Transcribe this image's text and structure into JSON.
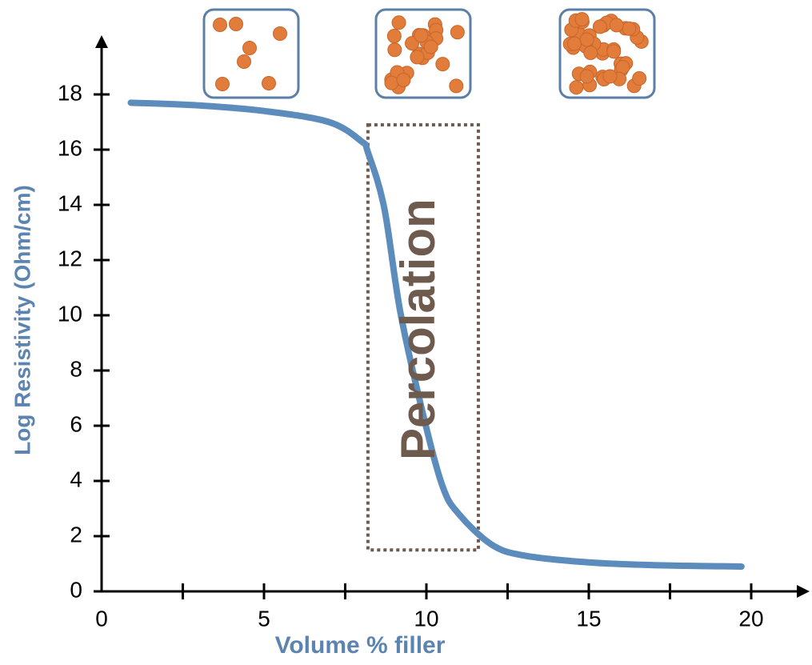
{
  "chart_data": {
    "type": "line",
    "x_label": "Volume % filler",
    "y_label": "Log Resistivity (Ohm/cm)",
    "xlim": [
      0,
      21.7
    ],
    "ylim": [
      0,
      20
    ],
    "xticks": [
      0,
      5,
      10,
      15,
      20
    ],
    "xminorticks": [
      2.5,
      7.5,
      12.5,
      17.5
    ],
    "yticks": [
      0,
      2,
      4,
      6,
      8,
      10,
      12,
      14,
      16,
      18
    ],
    "series": [
      {
        "color": "#5b8cbc",
        "x": [
          0.9,
          3,
          5,
          7,
          8,
          8.2,
          8.7,
          9.2,
          9.9,
          10.5,
          11,
          12,
          13,
          15,
          17,
          19.7
        ],
        "values": [
          17.7,
          17.6,
          17.4,
          17.0,
          16.3,
          15.9,
          13.9,
          10.1,
          6.4,
          3.8,
          2.8,
          1.7,
          1.3,
          1.05,
          0.95,
          0.9
        ]
      }
    ],
    "region": {
      "label": "Percolation",
      "x": [
        8.2,
        11.6
      ],
      "y": [
        1.5,
        16.9
      ],
      "color": "#6e5b4e"
    }
  }
}
